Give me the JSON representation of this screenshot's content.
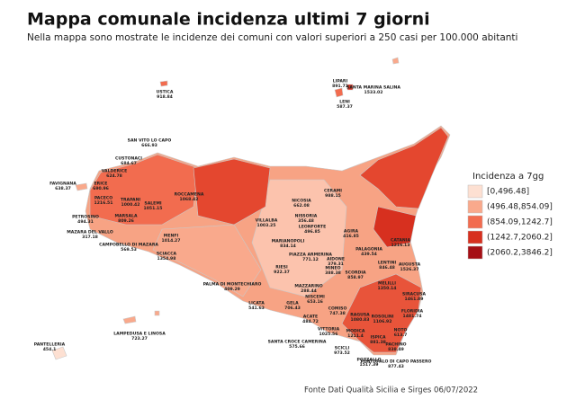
{
  "title": "Mappa comunale incidenza ultimi 7 giorni",
  "subtitle": "Nella mappa sono mostrate le incidenze dei comuni con valori superiori a 250 casi per 100.000 abitanti",
  "legend": {
    "title": "Incidenza a 7gg",
    "classes": [
      {
        "label": "[0,496.48]",
        "color": "#fde0d2"
      },
      {
        "label": "(496.48,854.09]",
        "color": "#f9a98c"
      },
      {
        "label": "(854.09,1242.7]",
        "color": "#f26c4f"
      },
      {
        "label": "(1242.7,2060.2]",
        "color": "#d7301f"
      },
      {
        "label": "(2060.2,3846.2]",
        "color": "#a50f15"
      }
    ]
  },
  "places": [
    {
      "name": "USTICA",
      "value": 918.84
    },
    {
      "name": "LIPARI",
      "value": 891.71
    },
    {
      "name": "SANTA MARINA SALINA",
      "value": 1533.02
    },
    {
      "name": "LENI",
      "value": 587.37
    },
    {
      "name": "SAN VITO LO CAPO",
      "value": 666.93
    },
    {
      "name": "CUSTONACI",
      "value": 684.67
    },
    {
      "name": "VALDERICE",
      "value": 624.78
    },
    {
      "name": "FAVIGNANA",
      "value": 638.37
    },
    {
      "name": "ERICE",
      "value": 690.96
    },
    {
      "name": "PACECO",
      "value": 1216.51
    },
    {
      "name": "TRAPANI",
      "value": 1000.42
    },
    {
      "name": "SALEMI",
      "value": 1051.15
    },
    {
      "name": "ROCCAMENA",
      "value": 1068.42
    },
    {
      "name": "MARSALA",
      "value": 809.26
    },
    {
      "name": "PETROSINO",
      "value": 494.31
    },
    {
      "name": "MAZARA DEL VALLO",
      "value": 317.18
    },
    {
      "name": "CAMPOBELLO DI MAZARA",
      "value": 569.53
    },
    {
      "name": "MENFI",
      "value": 1014.27
    },
    {
      "name": "SCIACCA",
      "value": 1354.98
    },
    {
      "name": "NICOSIA",
      "value": 662.08
    },
    {
      "name": "CERAMI",
      "value": 988.15
    },
    {
      "name": "NISSORIA",
      "value": 356.48
    },
    {
      "name": "LEONFORTE",
      "value": 496.85
    },
    {
      "name": "VILLALBA",
      "value": 1003.25
    },
    {
      "name": "AGIRA",
      "value": 416.85
    },
    {
      "name": "CATANIA",
      "value": 1216.13
    },
    {
      "name": "PALAGONIA",
      "value": 439.54
    },
    {
      "name": "PIAZZA ARMERINA",
      "value": 771.12
    },
    {
      "name": "MARIANOPOLI",
      "value": 834.14
    },
    {
      "name": "AIDONE",
      "value": 379.31
    },
    {
      "name": "RIESI",
      "value": 922.37
    },
    {
      "name": "MINEO",
      "value": 388.38
    },
    {
      "name": "LENTINI",
      "value": 846.48
    },
    {
      "name": "AUGUSTA",
      "value": 1526.37
    },
    {
      "name": "SCORDIA",
      "value": 858.97
    },
    {
      "name": "MELILLI",
      "value": 1350.14
    },
    {
      "name": "PALMA DI MONTECHIARO",
      "value": 409.29
    },
    {
      "name": "MAZZARINO",
      "value": 288.44
    },
    {
      "name": "LICATA",
      "value": 541.63
    },
    {
      "name": "GELA",
      "value": 706.43
    },
    {
      "name": "SIRACUSA",
      "value": 1461.89
    },
    {
      "name": "FLORIDIA",
      "value": 1481.74
    },
    {
      "name": "NISCEMI",
      "value": 653.16
    },
    {
      "name": "COMISO",
      "value": 747.38
    },
    {
      "name": "ACATE",
      "value": 484.72
    },
    {
      "name": "RAGUSA",
      "value": 1080.83
    },
    {
      "name": "ROSOLINI",
      "value": 1106.92
    },
    {
      "name": "VITTORIA",
      "value": 1025.56
    },
    {
      "name": "MODICA",
      "value": 1211.4
    },
    {
      "name": "NOTO",
      "value": 613.7
    },
    {
      "name": "ISPICA",
      "value": 881.38
    },
    {
      "name": "SANTA CROCE CAMERINA",
      "value": 575.66
    },
    {
      "name": "SCICLI",
      "value": 973.52
    },
    {
      "name": "PACHINO",
      "value": 838.49
    },
    {
      "name": "POZZALLO",
      "value": 1517.39
    },
    {
      "name": "PORTOPALO DI CAPO PASSERO",
      "value": 877.43
    },
    {
      "name": "LAMPEDUSA E LINOSA",
      "value": 723.27
    },
    {
      "name": "PANTELLERIA",
      "value": 454.1
    }
  ],
  "source": "Fonte Dati Qualità Sicilia e Sirges 06/07/2022"
}
